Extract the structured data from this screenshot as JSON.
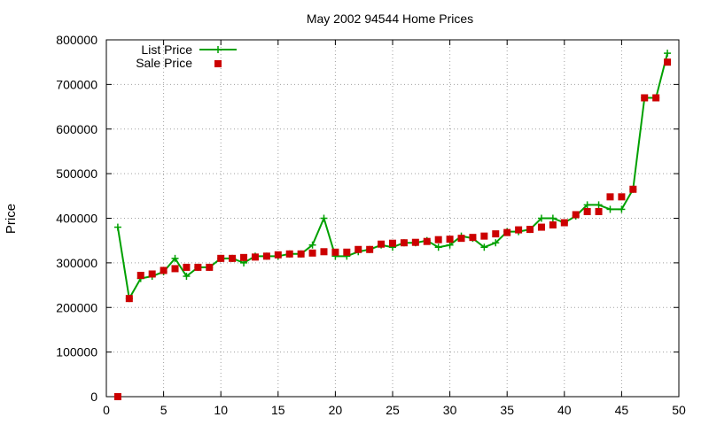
{
  "chart_data": {
    "type": "line",
    "title": "May 2002 94544 Home Prices",
    "xlabel": "",
    "ylabel": "Price",
    "xlim": [
      0,
      50
    ],
    "ylim": [
      0,
      800000
    ],
    "x_ticks": [
      "0",
      "5",
      "10",
      "15",
      "20",
      "25",
      "30",
      "35",
      "40",
      "45",
      "50"
    ],
    "y_ticks": [
      "0",
      "100000",
      "200000",
      "300000",
      "400000",
      "500000",
      "600000",
      "700000",
      "800000"
    ],
    "grid": true,
    "legend_position": "top-left",
    "series": [
      {
        "name": "List Price",
        "style": "lines+crosshair-points",
        "color": "#00a000",
        "x": [
          1,
          2,
          3,
          4,
          5,
          6,
          7,
          8,
          9,
          10,
          11,
          12,
          13,
          14,
          15,
          16,
          17,
          18,
          19,
          20,
          21,
          22,
          23,
          24,
          25,
          26,
          27,
          28,
          29,
          30,
          31,
          32,
          33,
          34,
          35,
          36,
          37,
          38,
          39,
          40,
          41,
          42,
          43,
          44,
          45,
          46,
          47,
          48,
          49
        ],
        "y": [
          380000,
          220000,
          265000,
          270000,
          280000,
          310000,
          270000,
          290000,
          290000,
          310000,
          310000,
          300000,
          315000,
          315000,
          315000,
          320000,
          320000,
          340000,
          400000,
          315000,
          315000,
          325000,
          330000,
          340000,
          335000,
          345000,
          345000,
          350000,
          335000,
          340000,
          360000,
          355000,
          335000,
          345000,
          370000,
          370000,
          375000,
          400000,
          400000,
          390000,
          405000,
          430000,
          430000,
          420000,
          420000,
          465000,
          670000,
          670000,
          770000
        ]
      },
      {
        "name": "Sale Price",
        "style": "square-points",
        "color": "#cc0000",
        "x": [
          1,
          2,
          3,
          4,
          5,
          6,
          7,
          8,
          9,
          10,
          11,
          12,
          13,
          14,
          15,
          16,
          17,
          18,
          19,
          20,
          21,
          22,
          23,
          24,
          25,
          26,
          27,
          28,
          29,
          30,
          31,
          32,
          33,
          34,
          35,
          36,
          37,
          38,
          39,
          40,
          41,
          42,
          43,
          44,
          45,
          46,
          47,
          48,
          49
        ],
        "y": [
          0,
          220000,
          272000,
          275000,
          283000,
          287000,
          290000,
          290000,
          290000,
          310000,
          310000,
          312000,
          313000,
          315000,
          318000,
          320000,
          320000,
          322000,
          325000,
          324000,
          324000,
          330000,
          330000,
          342000,
          344000,
          345000,
          346000,
          348000,
          352000,
          353000,
          355000,
          357000,
          360000,
          365000,
          368000,
          374000,
          375000,
          380000,
          385000,
          390000,
          408000,
          415000,
          415000,
          448000,
          448000,
          465000,
          670000,
          670000,
          750000
        ]
      }
    ]
  }
}
